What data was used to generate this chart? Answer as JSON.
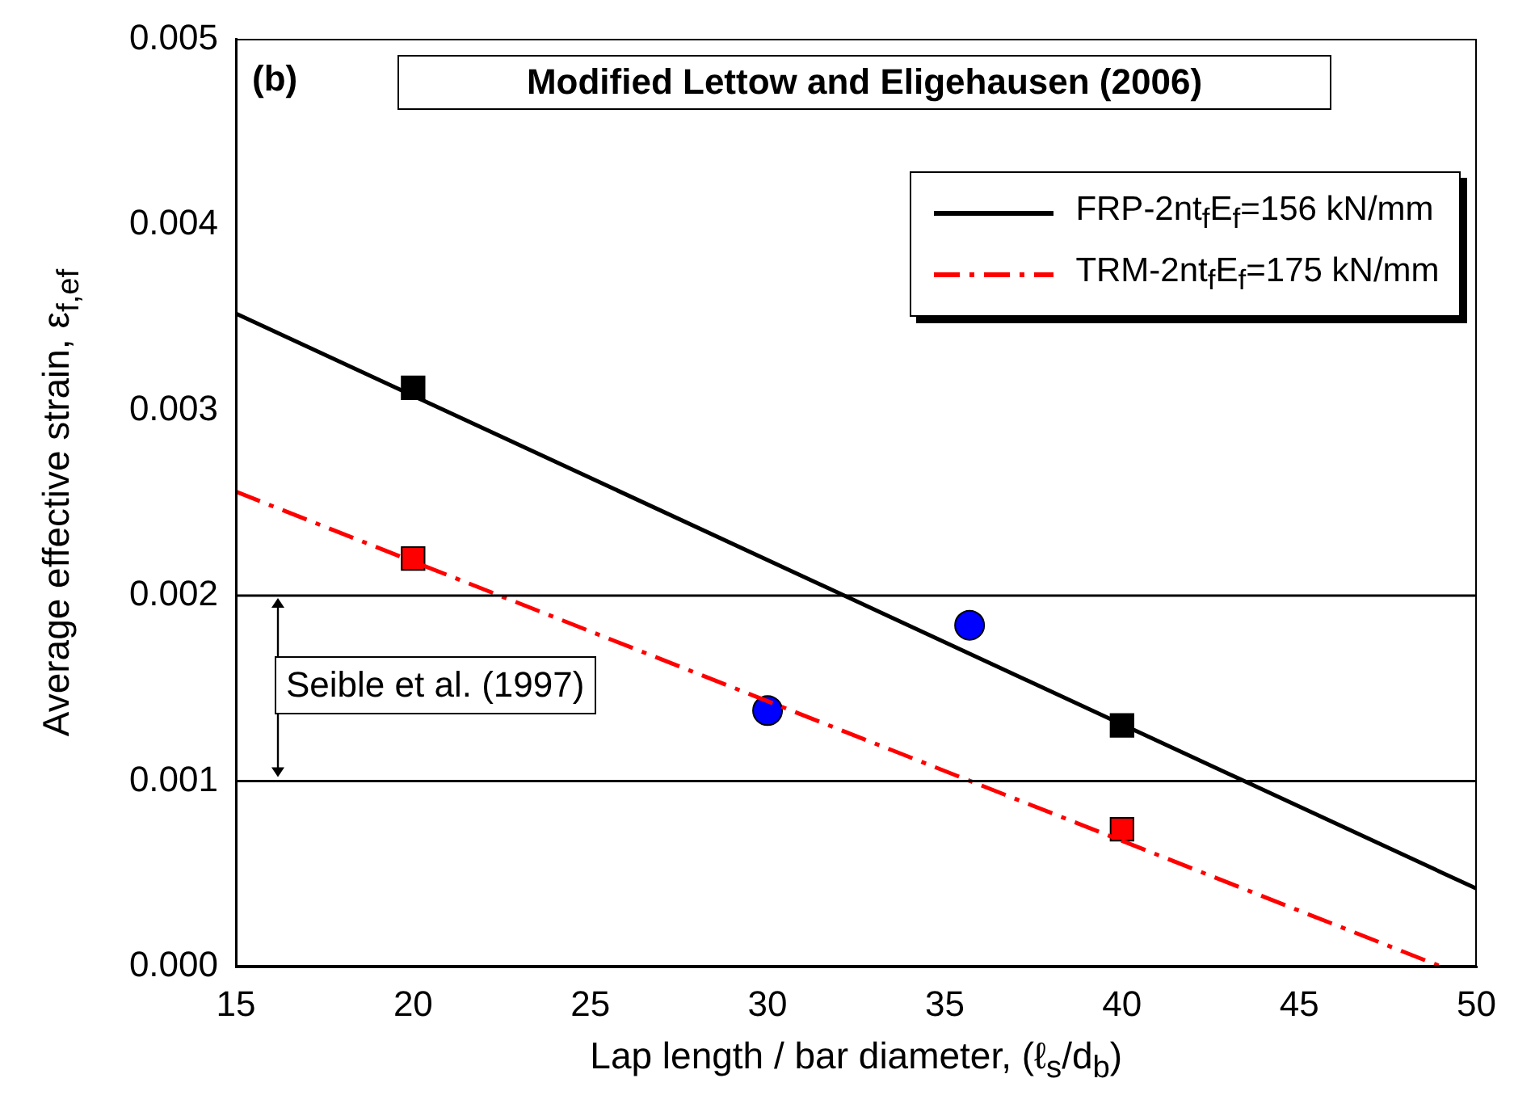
{
  "chart_data": {
    "type": "line",
    "title": "Modified Lettow and Eligehausen (2006)",
    "xlabel": "Lap length / bar diameter,  (ℓ$_{s}$/d$_{b}$)",
    "ylabel": "Average effective strain, ε$_{f,ef}$",
    "annotations": [
      "(b)",
      "Seible et al. (1997)"
    ],
    "series": [
      {
        "name": "FRP-2nt$_{f}$E$_{f}$=156 kN/mm",
        "color": "#000000",
        "x": [
          15,
          50
        ],
        "values": [
          0.00352,
          0.00042
        ],
        "line_style": "solid",
        "marker": "none"
      },
      {
        "name": "TRM-2nt$_{f}$E$_{f}$=175 kN/mm",
        "color": "#ff0000",
        "x": [
          15,
          49
        ],
        "values": [
          0.00256,
          0
        ],
        "line_style": "dashdot",
        "marker": "none"
      },
      {
        "type": "scatter",
        "color": "#000000",
        "x": [
          20,
          40
        ],
        "values": [
          0.00312,
          0.0013
        ],
        "marker": "square"
      },
      {
        "type": "scatter",
        "color": "#ff0000",
        "x": [
          20,
          40
        ],
        "values": [
          0.0022,
          0.00074
        ],
        "marker": "square"
      },
      {
        "type": "scatter",
        "color": "#0000ff",
        "x": [
          30,
          35.7
        ],
        "values": [
          0.00138,
          0.00184
        ],
        "marker": "circle"
      }
    ],
    "ref_lines": [
      {
        "axis": "y",
        "value": 0.002,
        "color": "#000000"
      },
      {
        "axis": "y",
        "value": 0.001,
        "color": "#000000"
      }
    ],
    "xlim": [
      15,
      50
    ],
    "xticks": [
      15,
      20,
      25,
      30,
      35,
      40,
      45,
      50
    ],
    "ylim": [
      0,
      0.005
    ],
    "yticks": [
      {
        "value": 0,
        "label": "0.000"
      },
      {
        "value": 0.001,
        "label": "0.001"
      },
      {
        "value": 0.002,
        "label": "0.002"
      },
      {
        "value": 0.003,
        "label": "0.003"
      },
      {
        "value": 0.004,
        "label": "0.004"
      },
      {
        "value": 0.005,
        "label": "0.005"
      }
    ],
    "grid": false,
    "legend": "top right"
  }
}
